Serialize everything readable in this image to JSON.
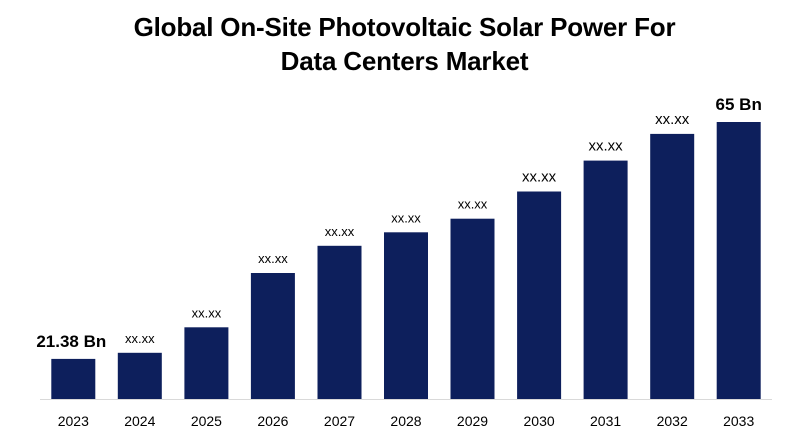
{
  "chart_data": {
    "type": "bar",
    "title_lines": [
      "Global On-Site Photovoltaic Solar Power For",
      "Data Centers Market"
    ],
    "xlabel": "",
    "ylabel": "",
    "categories": [
      "2023",
      "2024",
      "2025",
      "2026",
      "2027",
      "2028",
      "2029",
      "2030",
      "2031",
      "2032",
      "2033"
    ],
    "values": [
      21.38,
      22.5,
      27.2,
      37.2,
      42.2,
      44.7,
      47.2,
      52.2,
      57.9,
      62.8,
      65
    ],
    "data_labels": [
      "21.38 Bn",
      "xx.xx",
      "xx.xx",
      "xx.xx",
      "xx.xx",
      "xx.xx",
      "xx.xx",
      "xx.xx",
      "xx.xx",
      "xx.xx",
      "65 Bn"
    ],
    "ylim": [
      14,
      65
    ],
    "grid": false,
    "legend": "none",
    "bar_color": "#0d1f5c",
    "axis_color": "#d9d9d9"
  }
}
